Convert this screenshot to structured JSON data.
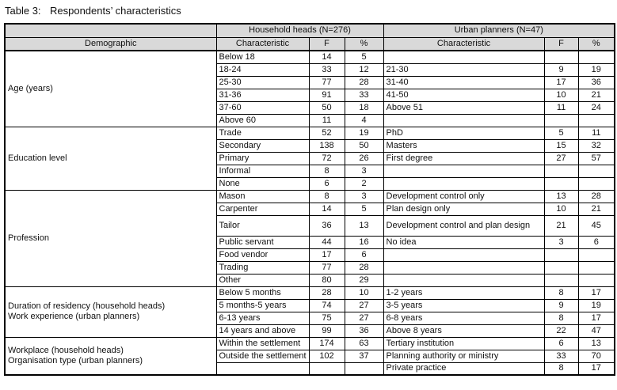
{
  "title": {
    "label": "Table 3:",
    "text": "Respondents’ characteristics"
  },
  "colors": {
    "header_bg": "#d9d9d9",
    "border": "#000000",
    "text": "#111111"
  },
  "table": {
    "group_headers": {
      "household_heads": "Household heads (N=276)",
      "urban_planners": "Urban planners (N=47)"
    },
    "col_headers": {
      "demographic": "Demographic",
      "hh_characteristic": "Characteristic",
      "hh_f": "F",
      "hh_pct": "%",
      "up_characteristic": "Characteristic",
      "up_f": "F",
      "up_pct": "%"
    },
    "sections": [
      {
        "demographic": [
          "Age (years)"
        ],
        "rows": [
          {
            "hh": [
              "Below 18",
              "14",
              "5"
            ],
            "up": [
              "",
              "",
              ""
            ]
          },
          {
            "hh": [
              "18-24",
              "33",
              "12"
            ],
            "up": [
              "21-30",
              "9",
              "19"
            ]
          },
          {
            "hh": [
              "25-30",
              "77",
              "28"
            ],
            "up": [
              "31-40",
              "17",
              "36"
            ]
          },
          {
            "hh": [
              "31-36",
              "91",
              "33"
            ],
            "up": [
              "41-50",
              "10",
              "21"
            ]
          },
          {
            "hh": [
              "37-60",
              "50",
              "18"
            ],
            "up": [
              "Above 51",
              "11",
              "24"
            ]
          },
          {
            "hh": [
              "Above 60",
              "11",
              "4"
            ],
            "up": [
              "",
              "",
              ""
            ]
          }
        ]
      },
      {
        "demographic": [
          "Education level"
        ],
        "rows": [
          {
            "hh": [
              "Trade",
              "52",
              "19"
            ],
            "up": [
              "PhD",
              "5",
              "11"
            ]
          },
          {
            "hh": [
              "Secondary",
              "138",
              "50"
            ],
            "up": [
              "Masters",
              "15",
              "32"
            ]
          },
          {
            "hh": [
              "Primary",
              "72",
              "26"
            ],
            "up": [
              "First degree",
              "27",
              "57"
            ]
          },
          {
            "hh": [
              "Informal",
              "8",
              "3"
            ],
            "up": [
              "",
              "",
              ""
            ]
          },
          {
            "hh": [
              "None",
              "6",
              "2"
            ],
            "up": [
              "",
              "",
              ""
            ]
          }
        ]
      },
      {
        "demographic": [
          "Profession"
        ],
        "rows": [
          {
            "hh": [
              "Mason",
              "8",
              "3"
            ],
            "up": [
              "Development control only",
              "13",
              "28"
            ]
          },
          {
            "hh": [
              "Carpenter",
              "14",
              "5"
            ],
            "up": [
              "Plan design only",
              "10",
              "21"
            ]
          },
          {
            "hh": [
              "Tailor",
              "36",
              "13"
            ],
            "up": [
              "Development control and plan design",
              "21",
              "45"
            ],
            "tall": true
          },
          {
            "hh": [
              "Public servant",
              "44",
              "16"
            ],
            "up": [
              "No idea",
              "3",
              "6"
            ]
          },
          {
            "hh": [
              "Food vendor",
              "17",
              "6"
            ],
            "up": [
              "",
              "",
              ""
            ]
          },
          {
            "hh": [
              "Trading",
              "77",
              "28"
            ],
            "up": [
              "",
              "",
              ""
            ]
          },
          {
            "hh": [
              "Other",
              "80",
              "29"
            ],
            "up": [
              "",
              "",
              ""
            ]
          }
        ]
      },
      {
        "demographic": [
          "Duration of residency (household heads)",
          "Work experience (urban planners)"
        ],
        "rows": [
          {
            "hh": [
              "Below 5 months",
              "28",
              "10"
            ],
            "up": [
              "1-2 years",
              "8",
              "17"
            ]
          },
          {
            "hh": [
              "5 months-5 years",
              "74",
              "27"
            ],
            "up": [
              "3-5 years",
              "9",
              "19"
            ]
          },
          {
            "hh": [
              "6-13 years",
              "75",
              "27"
            ],
            "up": [
              "6-8 years",
              "8",
              "17"
            ]
          },
          {
            "hh": [
              "14 years and above",
              "99",
              "36"
            ],
            "up": [
              "Above 8 years",
              "22",
              "47"
            ]
          }
        ]
      },
      {
        "demographic": [
          "Workplace (household heads)",
          "Organisation type (urban planners)"
        ],
        "rows": [
          {
            "hh": [
              "Within the settlement",
              "174",
              "63"
            ],
            "up": [
              "Tertiary institution",
              "6",
              "13"
            ]
          },
          {
            "hh": [
              "Outside the settlement",
              "102",
              "37"
            ],
            "up": [
              "Planning authority or ministry",
              "33",
              "70"
            ]
          },
          {
            "hh": [
              "",
              "",
              ""
            ],
            "up": [
              "Private practice",
              "8",
              "17"
            ]
          }
        ]
      }
    ]
  }
}
